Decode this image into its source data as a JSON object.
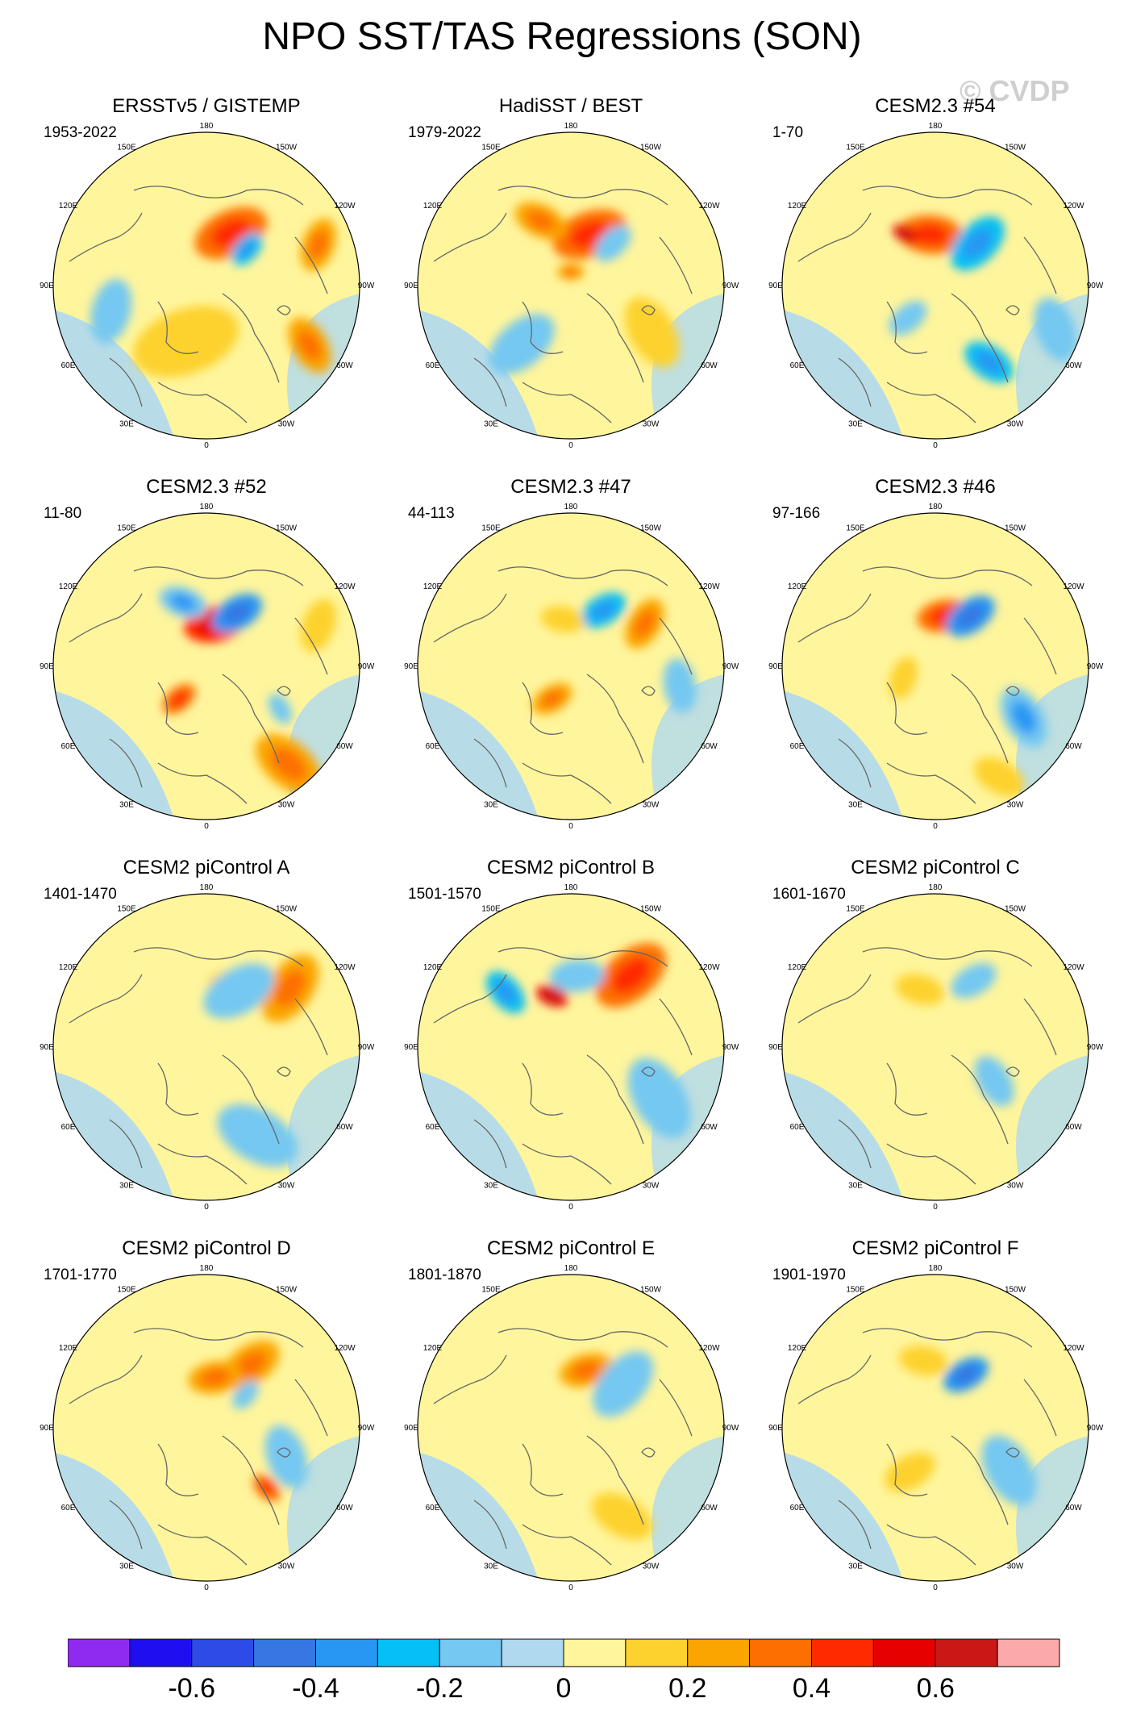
{
  "title": "NPO SST/TAS Regressions (SON)",
  "watermark": "© CVDP",
  "colors": {
    "levels": [
      "#8f2bf0",
      "#1f0ff0",
      "#2e4be8",
      "#3677e3",
      "#2797f3",
      "#06bff5",
      "#74c8f1",
      "#b0d9f0",
      "#fff59c",
      "#fdd22e",
      "#fba500",
      "#fd6f00",
      "#ff2a00",
      "#e60000",
      "#cc1717",
      "#fbaaaa"
    ],
    "land": "#ffffff",
    "coast": "#666666"
  },
  "chart_data": {
    "type": "polar-stereographic-contour-maps",
    "colorbar": {
      "tick_labels": [
        "-0.6",
        "-0.4",
        "-0.2",
        "0",
        "0.2",
        "0.4",
        "0.6"
      ],
      "boundaries": [
        -0.7,
        -0.6,
        -0.5,
        -0.4,
        -0.3,
        -0.2,
        -0.1,
        0,
        0.1,
        0.2,
        0.3,
        0.4,
        0.5,
        0.6,
        0.7
      ]
    },
    "longitude_labels": {
      "180": "180",
      "150E": "150E",
      "120E": "120E",
      "90E": "90E",
      "60E": "60E",
      "30E": "30E",
      "0": "0",
      "30W": "30W",
      "60W": "60W",
      "90W": "90W",
      "120W": "120W",
      "150W": "150W"
    },
    "panels": [
      {
        "title": "ERSSTv5 / GISTEMP",
        "range": "1953-2022",
        "features": [
          {
            "lon": 195,
            "colat": 30,
            "v": 0.45,
            "s": 9
          },
          {
            "lon": 205,
            "colat": 34,
            "v": 0.3,
            "s": 14
          },
          {
            "lon": 228,
            "colat": 32,
            "v": -0.3,
            "s": 7
          },
          {
            "lon": 250,
            "colat": 70,
            "v": 0.22,
            "s": 10
          },
          {
            "lon": 300,
            "colat": 70,
            "v": 0.2,
            "s": 11
          },
          {
            "lon": 75,
            "colat": 58,
            "v": -0.12,
            "s": 12
          },
          {
            "lon": 20,
            "colat": 35,
            "v": 0.1,
            "s": 20
          }
        ]
      },
      {
        "title": "HadiSST / BEST",
        "range": "1979-2022",
        "features": [
          {
            "lon": 200,
            "colat": 32,
            "v": 0.3,
            "s": 14
          },
          {
            "lon": 155,
            "colat": 42,
            "v": 0.2,
            "s": 10
          },
          {
            "lon": 225,
            "colat": 35,
            "v": -0.12,
            "s": 8
          },
          {
            "lon": 180,
            "colat": 8,
            "v": 0.2,
            "s": 5
          },
          {
            "lon": 300,
            "colat": 55,
            "v": 0.18,
            "s": 14
          },
          {
            "lon": 40,
            "colat": 45,
            "v": -0.12,
            "s": 14
          }
        ]
      },
      {
        "title": "CESM2.3 #54",
        "range": "1-70",
        "features": [
          {
            "lon": 175,
            "colat": 30,
            "v": 0.3,
            "s": 12
          },
          {
            "lon": 150,
            "colat": 35,
            "v": 0.5,
            "s": 5
          },
          {
            "lon": 225,
            "colat": 35,
            "v": -0.28,
            "s": 12
          },
          {
            "lon": 325,
            "colat": 55,
            "v": -0.25,
            "s": 10
          },
          {
            "lon": 290,
            "colat": 75,
            "v": -0.15,
            "s": 12
          },
          {
            "lon": 40,
            "colat": 25,
            "v": -0.12,
            "s": 8
          }
        ]
      },
      {
        "title": "CESM2.3 #52",
        "range": "11-80",
        "features": [
          {
            "lon": 190,
            "colat": 25,
            "v": 0.4,
            "s": 11
          },
          {
            "lon": 210,
            "colat": 36,
            "v": -0.35,
            "s": 10
          },
          {
            "lon": 160,
            "colat": 40,
            "v": -0.2,
            "s": 9
          },
          {
            "lon": 40,
            "colat": 25,
            "v": 0.35,
            "s": 7
          },
          {
            "lon": 250,
            "colat": 70,
            "v": 0.15,
            "s": 10
          },
          {
            "lon": 320,
            "colat": 75,
            "v": 0.25,
            "s": 14
          },
          {
            "lon": 300,
            "colat": 50,
            "v": -0.15,
            "s": 6
          }
        ]
      },
      {
        "title": "CESM2.3 #47",
        "range": "44-113",
        "features": [
          {
            "lon": 210,
            "colat": 38,
            "v": -0.3,
            "s": 9
          },
          {
            "lon": 240,
            "colat": 50,
            "v": 0.25,
            "s": 10
          },
          {
            "lon": 170,
            "colat": 28,
            "v": 0.18,
            "s": 8
          },
          {
            "lon": 30,
            "colat": 22,
            "v": 0.2,
            "s": 8
          },
          {
            "lon": 280,
            "colat": 65,
            "v": -0.15,
            "s": 10
          }
        ]
      },
      {
        "title": "CESM2.3 #46",
        "range": "97-166",
        "features": [
          {
            "lon": 190,
            "colat": 30,
            "v": 0.3,
            "s": 10
          },
          {
            "lon": 215,
            "colat": 36,
            "v": -0.35,
            "s": 10
          },
          {
            "lon": 300,
            "colat": 60,
            "v": -0.2,
            "s": 12
          },
          {
            "lon": 70,
            "colat": 20,
            "v": 0.15,
            "s": 8
          },
          {
            "lon": 330,
            "colat": 75,
            "v": 0.15,
            "s": 10
          }
        ]
      },
      {
        "title": "CESM2 piControl A",
        "range": "1401-1470",
        "features": [
          {
            "lon": 235,
            "colat": 60,
            "v": 0.2,
            "s": 14
          },
          {
            "lon": 195,
            "colat": 40,
            "v": 0.18,
            "s": 6
          },
          {
            "lon": 210,
            "colat": 38,
            "v": -0.12,
            "s": 14
          },
          {
            "lon": 330,
            "colat": 60,
            "v": -0.12,
            "s": 16
          }
        ]
      },
      {
        "title": "CESM2 piControl B",
        "range": "1501-1570",
        "features": [
          {
            "lon": 220,
            "colat": 55,
            "v": 0.3,
            "s": 15
          },
          {
            "lon": 160,
            "colat": 32,
            "v": 0.5,
            "s": 6
          },
          {
            "lon": 130,
            "colat": 50,
            "v": -0.3,
            "s": 9
          },
          {
            "lon": 185,
            "colat": 42,
            "v": -0.18,
            "s": 10
          },
          {
            "lon": 300,
            "colat": 60,
            "v": -0.12,
            "s": 16
          }
        ]
      },
      {
        "title": "CESM2 piControl C",
        "range": "1601-1670",
        "features": [
          {
            "lon": 165,
            "colat": 35,
            "v": 0.18,
            "s": 9
          },
          {
            "lon": 210,
            "colat": 45,
            "v": -0.12,
            "s": 9
          },
          {
            "lon": 300,
            "colat": 40,
            "v": -0.12,
            "s": 10
          }
        ]
      },
      {
        "title": "CESM2 piControl D",
        "range": "1701-1770",
        "features": [
          {
            "lon": 215,
            "colat": 45,
            "v": 0.28,
            "s": 12
          },
          {
            "lon": 190,
            "colat": 30,
            "v": 0.25,
            "s": 10
          },
          {
            "lon": 230,
            "colat": 30,
            "v": -0.15,
            "s": 6
          },
          {
            "lon": 315,
            "colat": 50,
            "v": 0.3,
            "s": 6
          },
          {
            "lon": 290,
            "colat": 50,
            "v": -0.15,
            "s": 12
          }
        ]
      },
      {
        "title": "CESM2 piControl E",
        "range": "1801-1870",
        "features": [
          {
            "lon": 195,
            "colat": 35,
            "v": 0.2,
            "s": 10
          },
          {
            "lon": 230,
            "colat": 40,
            "v": -0.15,
            "s": 14
          },
          {
            "lon": 330,
            "colat": 60,
            "v": 0.12,
            "s": 12
          }
        ]
      },
      {
        "title": "CESM2 piControl F",
        "range": "1901-1970",
        "features": [
          {
            "lon": 210,
            "colat": 36,
            "v": -0.32,
            "s": 9
          },
          {
            "lon": 170,
            "colat": 40,
            "v": 0.15,
            "s": 9
          },
          {
            "lon": 300,
            "colat": 50,
            "v": -0.15,
            "s": 14
          },
          {
            "lon": 30,
            "colat": 30,
            "v": 0.12,
            "s": 10
          }
        ]
      }
    ]
  }
}
